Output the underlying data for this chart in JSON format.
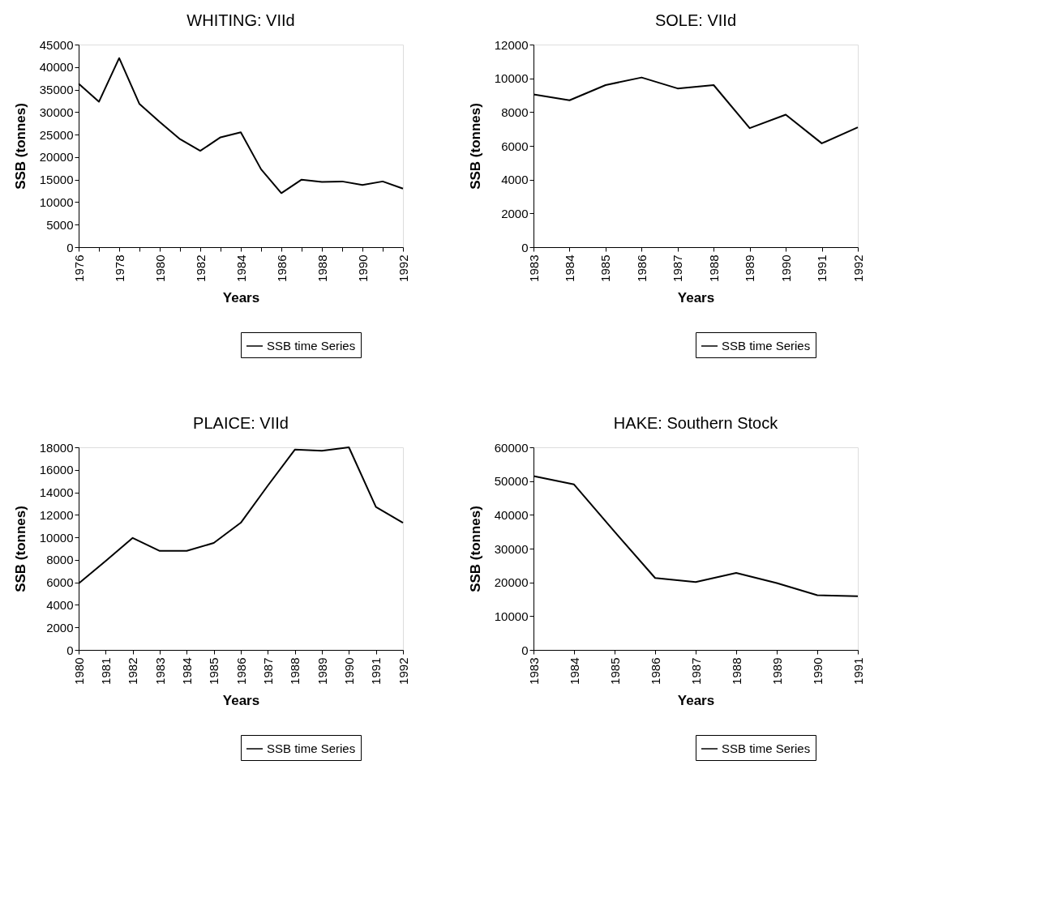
{
  "chart_data": [
    {
      "type": "line",
      "title": "WHITING: VIId",
      "xlabel": "Years",
      "ylabel": "SSB (tonnes)",
      "categories": [
        "1976",
        null,
        "1978",
        null,
        "1980",
        null,
        "1982",
        null,
        "1984",
        null,
        "1986",
        null,
        "1988",
        null,
        "1990",
        null,
        "1992"
      ],
      "series": [
        {
          "name": "SSB time Series",
          "color": "#000000",
          "values": [
            36300,
            32300,
            42000,
            31800,
            27800,
            24000,
            21400,
            24400,
            25500,
            17300,
            12000,
            15000,
            14500,
            14600,
            13800,
            14600,
            13000
          ]
        }
      ],
      "ylim": [
        0,
        45000
      ],
      "yticks": [
        0,
        5000,
        10000,
        15000,
        20000,
        25000,
        30000,
        35000,
        40000,
        45000
      ],
      "grid": false,
      "legend": "bottom right",
      "marker": "none",
      "line_style": "solid"
    },
    {
      "type": "line",
      "title": "SOLE: VIId",
      "xlabel": "Years",
      "ylabel": "SSB (tonnes)",
      "categories": [
        "1983",
        "1984",
        "1985",
        "1986",
        "1987",
        "1988",
        "1989",
        "1990",
        "1991",
        "1992"
      ],
      "series": [
        {
          "name": "SSB time Series",
          "color": "#000000",
          "values": [
            9050,
            8700,
            9600,
            10050,
            9400,
            9600,
            7050,
            7850,
            6150,
            7100
          ]
        }
      ],
      "ylim": [
        0,
        12000
      ],
      "yticks": [
        0,
        2000,
        4000,
        6000,
        8000,
        10000,
        12000
      ],
      "grid": false,
      "legend": "bottom right",
      "marker": "none",
      "line_style": "solid"
    },
    {
      "type": "line",
      "title": "PLAICE: VIId",
      "xlabel": "Years",
      "ylabel": "SSB (tonnes)",
      "categories": [
        "1980",
        "1981",
        "1982",
        "1983",
        "1984",
        "1985",
        "1986",
        "1987",
        "1988",
        "1989",
        "1990",
        "1991",
        "1992"
      ],
      "series": [
        {
          "name": "SSB time Series",
          "color": "#000000",
          "values": [
            5900,
            7900,
            9950,
            8800,
            8800,
            9500,
            11300,
            14600,
            17800,
            17700,
            18000,
            12700,
            11300
          ]
        }
      ],
      "ylim": [
        0,
        18000
      ],
      "yticks": [
        0,
        2000,
        4000,
        6000,
        8000,
        10000,
        12000,
        14000,
        16000,
        18000
      ],
      "grid": false,
      "legend": "bottom right",
      "marker": "none",
      "line_style": "solid"
    },
    {
      "type": "line",
      "title": "HAKE: Southern Stock",
      "xlabel": "Years",
      "ylabel": "SSB (tonnes)",
      "categories": [
        "1983",
        "1984",
        "1985",
        "1986",
        "1987",
        "1988",
        "1989",
        "1990",
        "1991"
      ],
      "series": [
        {
          "name": "SSB time Series",
          "color": "#000000",
          "values": [
            51500,
            49000,
            35000,
            21300,
            20100,
            22800,
            19800,
            16200,
            15900
          ]
        }
      ],
      "ylim": [
        0,
        60000
      ],
      "yticks": [
        0,
        10000,
        20000,
        30000,
        40000,
        50000,
        60000
      ],
      "grid": false,
      "legend": "bottom right",
      "marker": "none",
      "line_style": "solid"
    }
  ]
}
